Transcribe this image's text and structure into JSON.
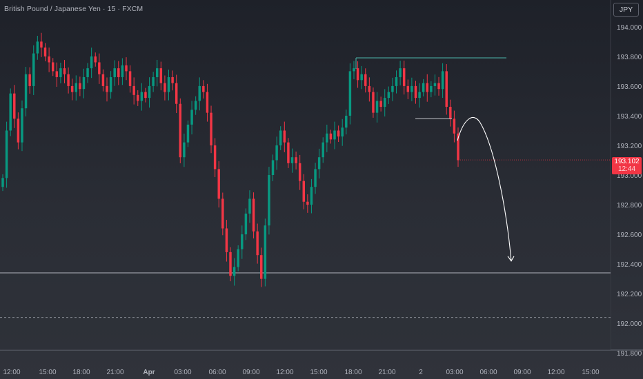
{
  "header": {
    "title": "British Pound / Japanese Yen · 15 · FXCM",
    "currency": "JPY"
  },
  "price_tag": {
    "price": "193.102",
    "countdown": "12:44"
  },
  "colors": {
    "up": "#089981",
    "down": "#f23645",
    "level_line": "#4db6ac",
    "zone_line": "#b2b5be",
    "arrow": "#ffffff",
    "axis_text": "#b2b5be"
  },
  "chart_data": {
    "type": "candlestick",
    "symbol": "GBPJPY",
    "timeframe": "15",
    "y_axis": {
      "ylim": [
        191.75,
        194.12
      ],
      "ticks": [
        194.0,
        193.8,
        193.6,
        193.4,
        193.2,
        193.0,
        192.8,
        192.6,
        192.4,
        192.2,
        192.0,
        191.8
      ],
      "tick_labels": [
        "194.000",
        "193.800",
        "193.600",
        "193.400",
        "193.200",
        "193.000",
        "192.800",
        "192.600",
        "192.400",
        "192.200",
        "192.000",
        "191.800"
      ]
    },
    "x_axis": {
      "tick_labels": [
        "12:00",
        "15:00",
        "18:00",
        "21:00",
        "Apr",
        "03:00",
        "06:00",
        "09:00",
        "12:00",
        "15:00",
        "18:00",
        "21:00",
        "2",
        "03:00",
        "06:00",
        "09:00",
        "12:00",
        "15:00"
      ]
    },
    "last_price": 193.102,
    "closes": [
      192.98,
      193.3,
      193.55,
      193.38,
      193.22,
      193.45,
      193.68,
      193.6,
      193.82,
      193.9,
      193.86,
      193.8,
      193.76,
      193.7,
      193.66,
      193.72,
      193.68,
      193.6,
      193.56,
      193.62,
      193.58,
      193.66,
      193.72,
      193.8,
      193.76,
      193.68,
      193.6,
      193.56,
      193.66,
      193.72,
      193.66,
      193.74,
      193.7,
      193.6,
      193.54,
      193.5,
      193.56,
      193.52,
      193.6,
      193.66,
      193.72,
      193.62,
      193.56,
      193.66,
      193.62,
      193.48,
      193.12,
      193.22,
      193.34,
      193.44,
      193.5,
      193.6,
      193.56,
      193.42,
      193.2,
      193.04,
      192.84,
      192.64,
      192.48,
      192.32,
      192.38,
      192.5,
      192.6,
      192.74,
      192.84,
      192.62,
      192.46,
      192.3,
      192.66,
      193.0,
      193.1,
      193.2,
      193.3,
      193.22,
      193.08,
      193.12,
      193.08,
      192.96,
      192.82,
      192.8,
      192.92,
      193.04,
      193.12,
      193.22,
      193.28,
      193.24,
      193.3,
      193.26,
      193.32,
      193.4,
      193.7,
      193.72,
      193.64,
      193.68,
      193.6,
      193.56,
      193.42,
      193.5,
      193.46,
      193.52,
      193.56,
      193.6,
      193.66,
      193.72,
      193.6,
      193.56,
      193.6,
      193.52,
      193.56,
      193.62,
      193.56,
      193.6,
      193.62,
      193.58,
      193.7,
      193.46,
      193.38,
      193.28,
      193.1
    ],
    "annotations": {
      "horizontal_high": 193.79,
      "horizontal_short": 193.38,
      "zone_top": 192.34,
      "zone_dashed": 192.04,
      "projection_arrow_target": 192.42
    }
  }
}
